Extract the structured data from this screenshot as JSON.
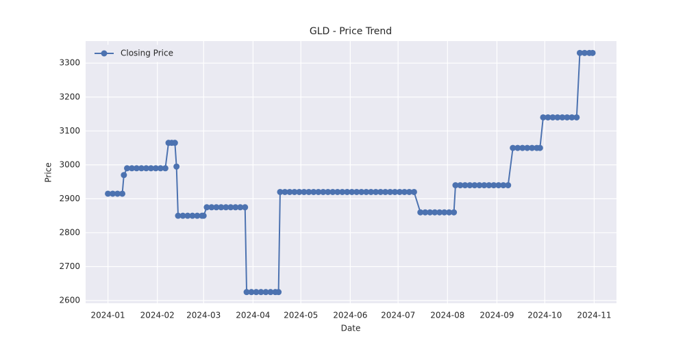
{
  "chart_data": {
    "type": "line",
    "title": "GLD - Price Trend",
    "xlabel": "Date",
    "ylabel": "Price",
    "x": [
      0,
      3,
      6,
      9,
      10,
      12,
      15,
      18,
      21,
      24,
      27,
      30,
      33,
      36,
      38,
      40,
      42,
      43,
      44,
      47,
      50,
      53,
      56,
      59,
      60,
      62,
      65,
      68,
      71,
      74,
      77,
      80,
      83,
      86,
      87,
      90,
      93,
      96,
      99,
      102,
      105,
      107,
      108,
      111,
      114,
      117,
      120,
      123,
      126,
      129,
      132,
      135,
      138,
      141,
      144,
      147,
      150,
      153,
      156,
      159,
      162,
      165,
      168,
      171,
      174,
      177,
      180,
      183,
      186,
      189,
      192,
      196,
      199,
      202,
      205,
      208,
      211,
      214,
      217,
      218,
      221,
      224,
      227,
      230,
      233,
      236,
      239,
      242,
      245,
      248,
      251,
      254,
      257,
      260,
      263,
      266,
      269,
      271,
      273,
      276,
      279,
      282,
      285,
      288,
      291,
      294,
      296,
      299,
      302,
      304
    ],
    "series": [
      {
        "name": "Closing Price",
        "color": "#4c72b0",
        "values": [
          2915,
          2915,
          2915,
          2915,
          2970,
          2990,
          2990,
          2990,
          2990,
          2990,
          2990,
          2990,
          2990,
          2990,
          3065,
          3065,
          3065,
          2995,
          2850,
          2850,
          2850,
          2850,
          2850,
          2850,
          2850,
          2875,
          2875,
          2875,
          2875,
          2875,
          2875,
          2875,
          2875,
          2875,
          2625,
          2625,
          2625,
          2625,
          2625,
          2625,
          2625,
          2625,
          2920,
          2920,
          2920,
          2920,
          2920,
          2920,
          2920,
          2920,
          2920,
          2920,
          2920,
          2920,
          2920,
          2920,
          2920,
          2920,
          2920,
          2920,
          2920,
          2920,
          2920,
          2920,
          2920,
          2920,
          2920,
          2920,
          2920,
          2920,
          2920,
          2860,
          2860,
          2860,
          2860,
          2860,
          2860,
          2860,
          2860,
          2940,
          2940,
          2940,
          2940,
          2940,
          2940,
          2940,
          2940,
          2940,
          2940,
          2940,
          2940,
          3050,
          3050,
          3050,
          3050,
          3050,
          3050,
          3050,
          3140,
          3140,
          3140,
          3140,
          3140,
          3140,
          3140,
          3140,
          3330,
          3330,
          3330,
          3330
        ]
      }
    ],
    "xlim": [
      -14,
      319
    ],
    "xticks": [
      {
        "value": 0,
        "label": "2024-01"
      },
      {
        "value": 31,
        "label": "2024-02"
      },
      {
        "value": 60,
        "label": "2024-03"
      },
      {
        "value": 91,
        "label": "2024-04"
      },
      {
        "value": 121,
        "label": "2024-05"
      },
      {
        "value": 152,
        "label": "2024-06"
      },
      {
        "value": 182,
        "label": "2024-07"
      },
      {
        "value": 213,
        "label": "2024-08"
      },
      {
        "value": 244,
        "label": "2024-09"
      },
      {
        "value": 274,
        "label": "2024-10"
      },
      {
        "value": 305,
        "label": "2024-11"
      }
    ],
    "ylim": [
      2592,
      3365
    ],
    "yticks": [
      2600,
      2700,
      2800,
      2900,
      3000,
      3100,
      3200,
      3300
    ],
    "grid": true,
    "legend": "upper left"
  }
}
